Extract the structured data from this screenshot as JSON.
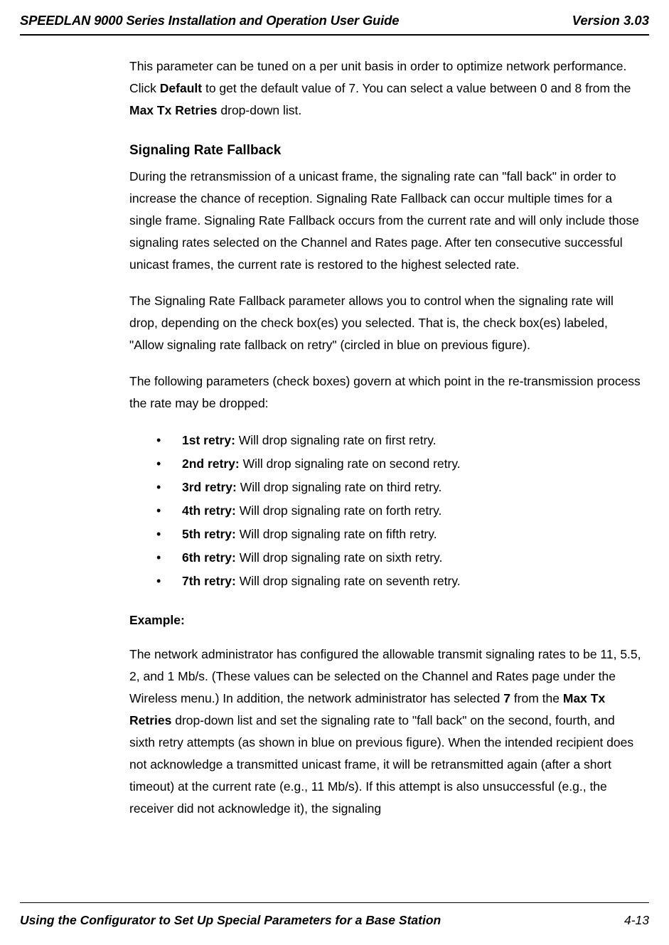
{
  "header": {
    "title": "SPEEDLAN 9000 Series Installation and Operation User Guide",
    "version": "Version 3.03"
  },
  "body": {
    "intro_p1_a": "This parameter can be tuned on a per unit basis in order to optimize network performance. Click ",
    "intro_p1_bold1": "Default",
    "intro_p1_b": " to get the default value of 7. You can select a value between 0 and 8 from the ",
    "intro_p1_bold2": "Max Tx Retries",
    "intro_p1_c": " drop-down list.",
    "heading1": "Signaling Rate Fallback",
    "p2": "During the retransmission of a unicast frame, the signaling rate can \"fall back\" in order to increase the chance of reception. Signaling Rate Fallback can occur multiple times for a single frame. Signaling Rate Fallback occurs from the current rate and will only include those signaling rates selected on the Channel and Rates page. After ten consecutive successful unicast frames, the current rate is restored to the highest selected rate.",
    "p3": "The Signaling Rate Fallback parameter allows you to control when the signaling rate will drop, depending on the check box(es) you selected. That is, the check box(es) labeled, \"Allow signaling rate fallback on retry\" (circled in blue on previous figure).",
    "p4": "The following parameters (check boxes) govern at which point in the re-transmission process the rate may be dropped:",
    "bullets": [
      {
        "label": "1st retry:",
        "text": " Will drop signaling rate on first retry."
      },
      {
        "label": "2nd retry:",
        "text": " Will drop signaling rate on second retry."
      },
      {
        "label": "3rd retry:",
        "text": " Will drop signaling rate on third retry."
      },
      {
        "label": "4th retry:",
        "text": " Will drop signaling rate on forth retry."
      },
      {
        "label": "5th retry:",
        "text": " Will drop signaling rate on fifth retry."
      },
      {
        "label": "6th retry:",
        "text": " Will drop signaling rate on sixth retry."
      },
      {
        "label": "7th retry:",
        "text": " Will drop signaling rate on seventh retry."
      }
    ],
    "example_heading": "Example:",
    "example_a": "The network administrator has configured the allowable transmit signaling rates to be 11, 5.5, 2, and 1 Mb/s. (These values can be selected on the Channel and Rates page under the Wireless menu.) In addition, the network administrator has selected ",
    "example_bold1": "7",
    "example_b": " from the ",
    "example_bold2": "Max Tx Retries",
    "example_c": " drop-down list and set the signaling rate to \"fall back\" on the second, fourth, and sixth retry attempts (as shown in blue on previous figure). When the intended recipient does not acknowledge a transmitted unicast frame, it will be retransmitted again (after a short timeout) at the current rate (e.g., 11 Mb/s). If this attempt is also unsuccessful (e.g., the receiver did not acknowledge it), the signaling"
  },
  "footer": {
    "left": "Using the Configurator to Set Up Special Parameters for a Base Station",
    "right": "4-13"
  }
}
